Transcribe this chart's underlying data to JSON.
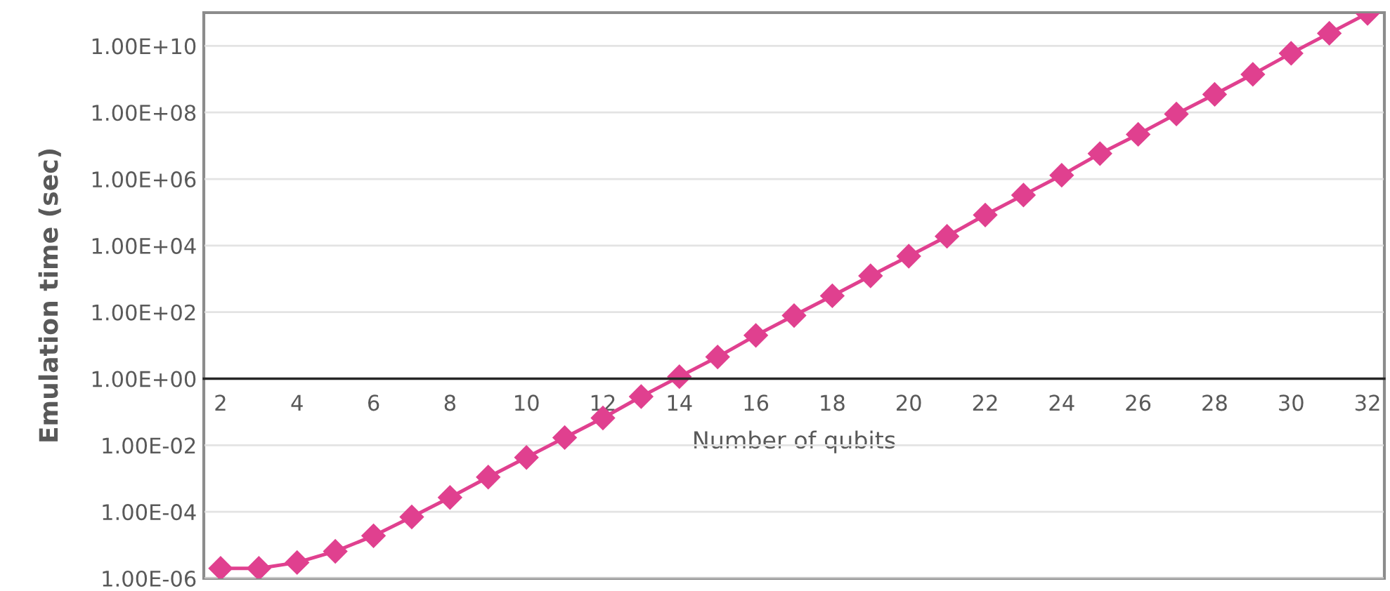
{
  "chart_data": {
    "type": "line",
    "xlabel": "Number of qubits",
    "ylabel": "Emulation time (sec)",
    "categories": [
      "2",
      null,
      "4",
      null,
      "6",
      null,
      "8",
      null,
      "10",
      null,
      "12",
      null,
      "14",
      null,
      "16",
      null,
      "18",
      null,
      "20",
      null,
      "22",
      null,
      "24",
      null,
      "26",
      null,
      "28",
      null,
      "30",
      null,
      "32"
    ],
    "series": [
      {
        "color": "#e0408f",
        "values": [
          2e-06,
          2e-06,
          3e-06,
          6.5e-06,
          1.9e-05,
          7e-05,
          0.00027,
          0.0011,
          0.0043,
          0.017,
          0.066,
          0.29,
          1.15,
          4.5,
          20,
          79,
          310,
          1230,
          4800,
          19000.0,
          83000.0,
          330000.0,
          1300000.0,
          5800000.0,
          22000000.0,
          90000000.0,
          350000000.0,
          1400000000.0,
          6000000000.0,
          24000000000.0,
          95000000000.0
        ]
      }
    ],
    "log": true,
    "ylim": [
      1e-06,
      100000000000.0
    ],
    "yticks": [
      {
        "value": 1e-06,
        "label": "1.00E-06"
      },
      {
        "value": 0.0001,
        "label": "1.00E-04"
      },
      {
        "value": 0.01,
        "label": "1.00E-02"
      },
      {
        "value": 1,
        "label": "1.00E+00"
      },
      {
        "value": 100,
        "label": "1.00E+02"
      },
      {
        "value": 10000.0,
        "label": "1.00E+04"
      },
      {
        "value": 1000000.0,
        "label": "1.00E+06"
      },
      {
        "value": 100000000.0,
        "label": "1.00E+08"
      },
      {
        "value": 10000000000.0,
        "label": "1.00E+10"
      }
    ],
    "grid": "y",
    "marker": "diamond",
    "line_style": "solid"
  }
}
